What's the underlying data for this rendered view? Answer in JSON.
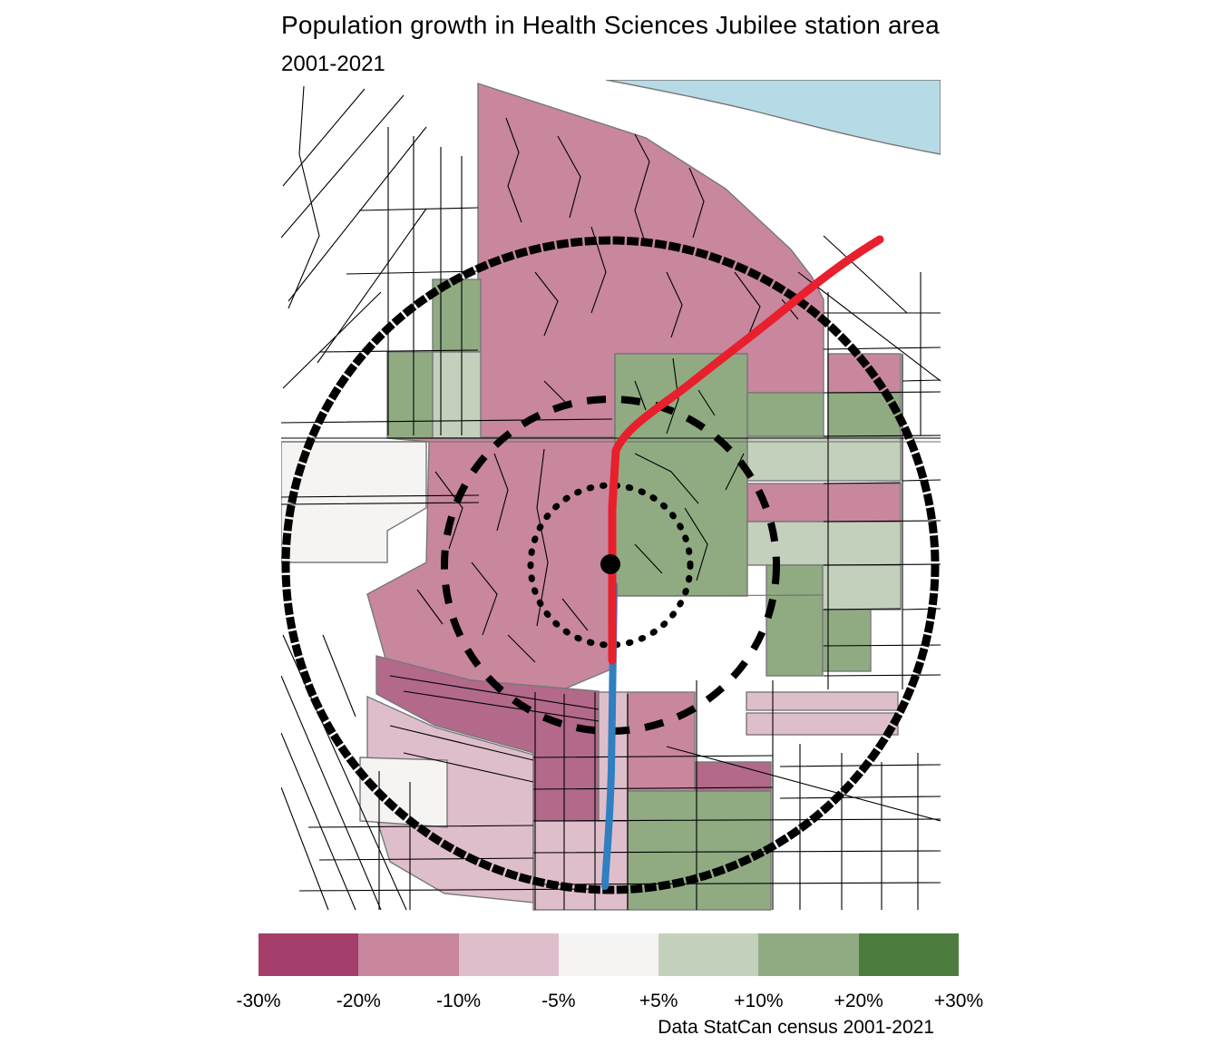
{
  "title": "Population growth in Health Sciences Jubilee station area",
  "subtitle": "2001-2021",
  "attribution": "Data StatCan census 2001-2021",
  "legend": {
    "labels": [
      "-30%",
      "-20%",
      "-10%",
      "-5%",
      "+5%",
      "+10%",
      "+20%",
      "+30%"
    ],
    "colors": [
      "#A43E6B",
      "#C8879D",
      "#DFBECB",
      "#F5F4F2",
      "#C3D0BC",
      "#90AB82",
      "#4C7C3E"
    ]
  },
  "map": {
    "station": {
      "name": "Health Sciences Jubilee station",
      "marker": "black-dot"
    },
    "rings": [
      {
        "name": "inner-radius-ring",
        "style": "dotted"
      },
      {
        "name": "middle-radius-ring",
        "style": "dashed"
      },
      {
        "name": "outer-radius-ring",
        "style": "solid"
      }
    ],
    "lines": [
      {
        "name": "rail-line-north",
        "color": "#E8202D"
      },
      {
        "name": "rail-line-south",
        "color": "#2F7FC1"
      }
    ],
    "water_color": "#B7DBE6",
    "dark_band_color": "#B2698A"
  }
}
